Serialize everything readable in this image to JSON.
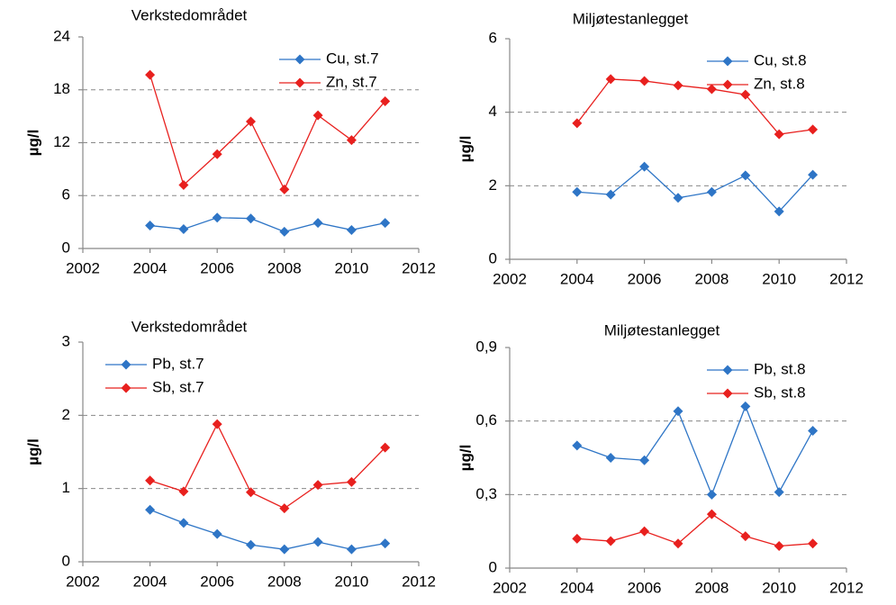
{
  "chart_data": [
    {
      "type": "line",
      "title": "Verkstedområdet",
      "y_label": "µg/l",
      "x": [
        2004,
        2005,
        2006,
        2007,
        2008,
        2009,
        2010,
        2011
      ],
      "xlim": [
        2002,
        2012
      ],
      "xticks": [
        2002,
        2004,
        2006,
        2008,
        2010,
        2012
      ],
      "ylim": [
        0,
        24
      ],
      "yticks": [
        0,
        6,
        12,
        18,
        24
      ],
      "grid": true,
      "legend": "upper right",
      "series": [
        {
          "name": "Cu, st.7",
          "color": "#2e75c6",
          "values": [
            2.6,
            2.2,
            3.5,
            3.4,
            1.9,
            2.9,
            2.1,
            2.9
          ]
        },
        {
          "name": "Zn, st.7",
          "color": "#e8201e",
          "values": [
            19.7,
            7.2,
            10.7,
            14.4,
            6.7,
            15.1,
            12.3,
            16.7
          ]
        }
      ]
    },
    {
      "type": "line",
      "title": "Miljøtestanlegget",
      "y_label": "µg/l",
      "x": [
        2004,
        2005,
        2006,
        2007,
        2008,
        2009,
        2010,
        2011
      ],
      "xlim": [
        2002,
        2012
      ],
      "xticks": [
        2002,
        2004,
        2006,
        2008,
        2010,
        2012
      ],
      "ylim": [
        0,
        6
      ],
      "yticks": [
        0,
        2,
        4,
        6
      ],
      "grid": true,
      "legend": "upper right",
      "series": [
        {
          "name": "Cu, st.8",
          "color": "#2e75c6",
          "values": [
            1.83,
            1.76,
            2.52,
            1.67,
            1.83,
            2.28,
            1.3,
            2.3
          ]
        },
        {
          "name": "Zn, st.8",
          "color": "#e8201e",
          "values": [
            3.7,
            4.9,
            4.85,
            4.73,
            4.63,
            4.48,
            3.4,
            3.53
          ]
        }
      ]
    },
    {
      "type": "line",
      "title": "Verkstedområdet",
      "y_label": "µg/l",
      "x": [
        2004,
        2005,
        2006,
        2007,
        2008,
        2009,
        2010,
        2011
      ],
      "xlim": [
        2002,
        2012
      ],
      "xticks": [
        2002,
        2004,
        2006,
        2008,
        2010,
        2012
      ],
      "ylim": [
        0,
        3
      ],
      "yticks": [
        0,
        1,
        2,
        3
      ],
      "grid": true,
      "legend": "upper left",
      "series": [
        {
          "name": "Pb, st.7",
          "color": "#2e75c6",
          "values": [
            0.71,
            0.53,
            0.38,
            0.23,
            0.17,
            0.27,
            0.17,
            0.25
          ]
        },
        {
          "name": "Sb, st.7",
          "color": "#e8201e",
          "values": [
            1.11,
            0.96,
            1.88,
            0.95,
            0.73,
            1.05,
            1.09,
            1.56
          ]
        }
      ]
    },
    {
      "type": "line",
      "title": "Miljøtestanlegget",
      "y_label": "µg/l",
      "x": [
        2004,
        2005,
        2006,
        2007,
        2008,
        2009,
        2010,
        2011
      ],
      "xlim": [
        2002,
        2012
      ],
      "xticks": [
        2002,
        2004,
        2006,
        2008,
        2010,
        2012
      ],
      "ylim": [
        0,
        0.9
      ],
      "yticks": [
        0,
        {
          "value": 0.3,
          "label": "0,3"
        },
        {
          "value": 0.6,
          "label": "0,6"
        },
        {
          "value": 0.9,
          "label": "0,9"
        }
      ],
      "grid": true,
      "legend": "upper right",
      "series": [
        {
          "name": "Pb, st.8",
          "color": "#2e75c6",
          "values": [
            0.5,
            0.45,
            0.44,
            0.64,
            0.3,
            0.66,
            0.31,
            0.56
          ]
        },
        {
          "name": "Sb, st.8",
          "color": "#e8201e",
          "values": [
            0.12,
            0.11,
            0.15,
            0.1,
            0.22,
            0.13,
            0.09,
            0.1
          ]
        }
      ]
    }
  ]
}
